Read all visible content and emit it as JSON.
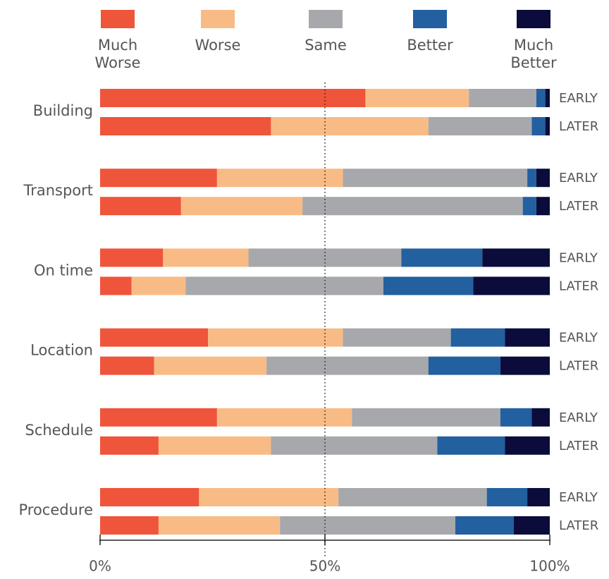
{
  "chart_data": {
    "type": "stacked_bar_horizontal",
    "groups": [
      "Building",
      "Transport",
      "On time",
      "Location",
      "Schedule",
      "Procedure"
    ],
    "subgroups": [
      "EARLY",
      "LATER"
    ],
    "series": [
      {
        "name": "Much Worse",
        "color": "#ee553a",
        "values": [
          59,
          38,
          26,
          18,
          14,
          7,
          24,
          12,
          26,
          13,
          22,
          13
        ]
      },
      {
        "name": "Worse",
        "color": "#f9bb85",
        "values": [
          23,
          35,
          28,
          27,
          19,
          12,
          30,
          25,
          30,
          25,
          31,
          27
        ]
      },
      {
        "name": "Same",
        "color": "#a7a8ac",
        "values": [
          15,
          23,
          41,
          49,
          34,
          44,
          24,
          36,
          33,
          37,
          33,
          39
        ]
      },
      {
        "name": "Better",
        "color": "#2260a0",
        "values": [
          2,
          3,
          2,
          3,
          18,
          20,
          12,
          16,
          7,
          15,
          9,
          13
        ]
      },
      {
        "name": "Much Better",
        "color": "#0b0c3b",
        "values": [
          1,
          1,
          3,
          3,
          15,
          17,
          10,
          11,
          4,
          10,
          5,
          8
        ]
      }
    ],
    "xlim": [
      0,
      100
    ],
    "xticks": [
      {
        "value": 0,
        "label": "0%"
      },
      {
        "value": 50,
        "label": "50%"
      },
      {
        "value": 100,
        "label": "100%"
      }
    ],
    "reference_line": 50
  }
}
